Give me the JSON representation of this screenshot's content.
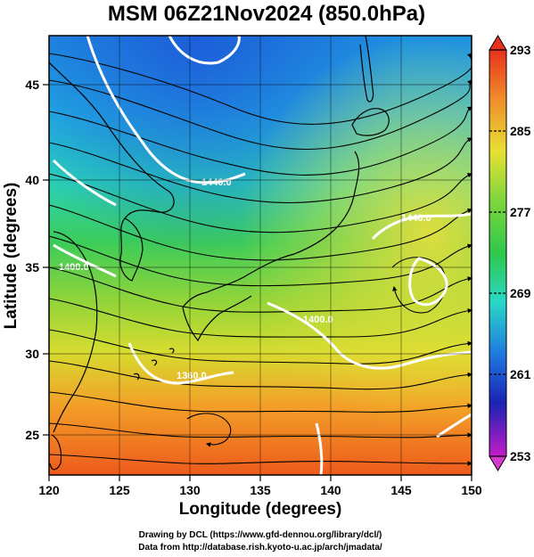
{
  "title": "MSM 06Z21Nov2024 (850.0hPa)",
  "xlabel": "Longitude (degrees)",
  "ylabel": "Latitude  (degrees)",
  "x_ticks": [
    "120",
    "125",
    "130",
    "135",
    "140",
    "145",
    "150"
  ],
  "y_ticks": [
    "25",
    "30",
    "35",
    "40",
    "45"
  ],
  "colorbar": {
    "ticks": [
      "293",
      "285",
      "277",
      "269",
      "261",
      "253"
    ],
    "min": 253,
    "max": 293
  },
  "contour_labels": [
    "1440.0",
    "1440.0",
    "1400.0",
    "1400.0",
    "1360.0"
  ],
  "credits": [
    "Drawing by DCL (https://www.gfd-dennou.org/library/dcl/)",
    "Data from http://database.rish.kyoto-u.ac.jp/arch/jmadata/"
  ],
  "map": {
    "lon_range": [
      120,
      150
    ],
    "lat_range": [
      22.4,
      47.6
    ],
    "field": "temperature (K) with wind streamlines and height contours"
  }
}
